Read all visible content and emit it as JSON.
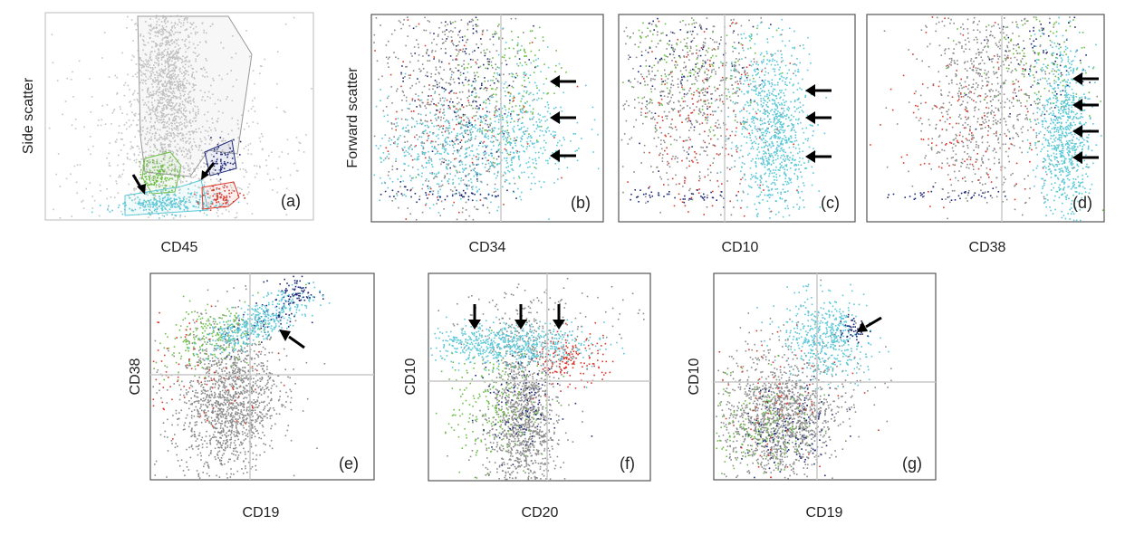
{
  "figure": {
    "panels": [
      {
        "id": "a",
        "tag": "(a)",
        "xlabel": "CD45",
        "ylabel": "Side scatter"
      },
      {
        "id": "b",
        "tag": "(b)",
        "xlabel": "CD34",
        "ylabel": "Forward scatter"
      },
      {
        "id": "c",
        "tag": "(c)",
        "xlabel": "CD10",
        "ylabel": ""
      },
      {
        "id": "d",
        "tag": "(d)",
        "xlabel": "CD38",
        "ylabel": ""
      },
      {
        "id": "e",
        "tag": "(e)",
        "xlabel": "CD19",
        "ylabel": "CD38"
      },
      {
        "id": "f",
        "tag": "(f)",
        "xlabel": "CD20",
        "ylabel": "CD10"
      },
      {
        "id": "g",
        "tag": "(g)",
        "xlabel": "CD19",
        "ylabel": "CD10"
      }
    ]
  },
  "colors": {
    "gray": "#8a8a8a",
    "light_gray": "#c4c4c4",
    "green": "#6cbf45",
    "cyan": "#5bc8d8",
    "navy": "#1f2a7a",
    "red": "#d93a2e"
  },
  "chart_data": [
    {
      "panel": "a",
      "type": "scatter",
      "xlabel": "CD45",
      "ylabel": "Side scatter",
      "populations": [
        "light_gray",
        "green",
        "cyan",
        "navy",
        "red"
      ],
      "gates": [
        "light_gray",
        "green",
        "cyan",
        "navy",
        "red"
      ],
      "arrows": 2,
      "quadrant_lines": false
    },
    {
      "panel": "b",
      "type": "scatter",
      "xlabel": "CD34",
      "ylabel": "Forward scatter",
      "populations": [
        "gray",
        "green",
        "cyan",
        "navy",
        "red"
      ],
      "arrows": 3,
      "quadrant_lines": true
    },
    {
      "panel": "c",
      "type": "scatter",
      "xlabel": "CD10",
      "ylabel": "",
      "populations": [
        "gray",
        "green",
        "cyan",
        "navy",
        "red"
      ],
      "arrows": 3,
      "quadrant_lines": true
    },
    {
      "panel": "d",
      "type": "scatter",
      "xlabel": "CD38",
      "ylabel": "",
      "populations": [
        "gray",
        "green",
        "cyan",
        "navy",
        "red"
      ],
      "arrows": 4,
      "quadrant_lines": true
    },
    {
      "panel": "e",
      "type": "scatter",
      "xlabel": "CD19",
      "ylabel": "CD38",
      "populations": [
        "gray",
        "green",
        "cyan",
        "navy",
        "red"
      ],
      "arrows": 1,
      "quadrant_lines": true
    },
    {
      "panel": "f",
      "type": "scatter",
      "xlabel": "CD20",
      "ylabel": "CD10",
      "populations": [
        "gray",
        "green",
        "cyan",
        "navy",
        "red"
      ],
      "arrows": 3,
      "quadrant_lines": true
    },
    {
      "panel": "g",
      "type": "scatter",
      "xlabel": "CD19",
      "ylabel": "CD10",
      "populations": [
        "gray",
        "green",
        "cyan",
        "navy",
        "red"
      ],
      "arrows": 1,
      "quadrant_lines": true
    }
  ]
}
